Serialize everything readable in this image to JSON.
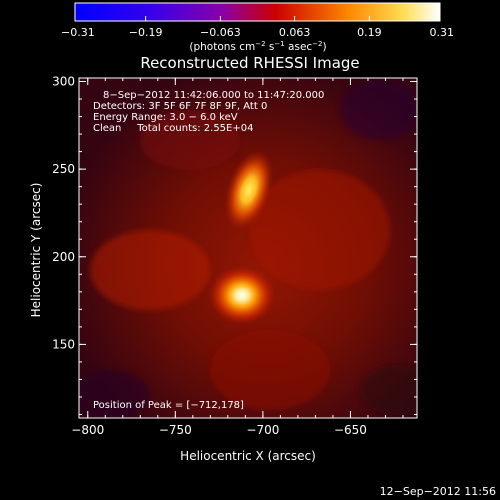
{
  "chart_data": {
    "type": "heatmap",
    "title": "Reconstructed RHESSI Image",
    "xlabel": "Heliocentric X (arcsec)",
    "ylabel": "Heliocentric Y (arcsec)",
    "xlim": [
      -805,
      -612
    ],
    "ylim": [
      108,
      302
    ],
    "x_ticks": [
      -800,
      -750,
      -700,
      -650
    ],
    "y_ticks": [
      150,
      200,
      250,
      300
    ],
    "x_tick_labels": [
      "−800",
      "−750",
      "−700",
      "−650"
    ],
    "y_tick_labels": [
      "150",
      "200",
      "250",
      "300"
    ],
    "colorbar": {
      "range": [
        -0.31,
        0.31
      ],
      "ticks": [
        -0.31,
        -0.19,
        -0.063,
        0.063,
        0.19,
        0.31
      ],
      "tick_labels": [
        "−0.31",
        "−0.19",
        "−0.063",
        "0.063",
        "0.19",
        "0.31"
      ],
      "unit_parts": [
        "(photons cm",
        "−2",
        " s",
        "−1",
        " asec",
        "−2",
        ")"
      ],
      "colors": [
        "#0000ff",
        "#6600cc",
        "#ff0000",
        "#ff9900",
        "#ffffff"
      ]
    },
    "sources": [
      {
        "x": -712,
        "y": 178,
        "peak": 0.31
      },
      {
        "x": -708,
        "y": 238,
        "peak": 0.22
      }
    ],
    "annotations": [
      "8−Sep−2012 11:42:06.000 to 11:47:20.000",
      "Detectors: 3F 5F 6F 7F 8F 9F, Att 0",
      "Energy Range: 3.0 − 6.0 keV",
      "Clean     Total counts: 2.55E+04"
    ],
    "peak_label": "Position of Peak = [−712,178]"
  },
  "footer": {
    "timestamp": "12−Sep−2012 11:56"
  }
}
